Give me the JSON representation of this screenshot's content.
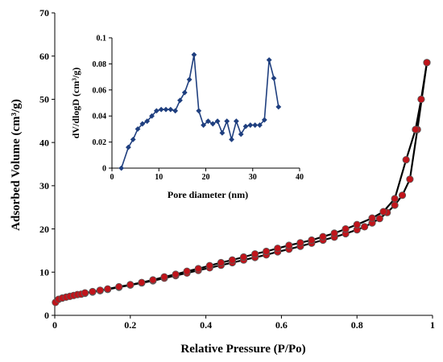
{
  "chart_data": [
    {
      "type": "line",
      "xlabel": "Relative Pressure (P/Po)",
      "ylabel": "Adsorbed Volume (cm³/g)",
      "xlim": [
        0,
        1
      ],
      "ylim": [
        0,
        70
      ],
      "xticks": [
        0,
        0.2,
        0.4,
        0.6,
        0.8,
        1
      ],
      "xtick_labels": [
        "0",
        "0.2",
        "0.4",
        "0.6",
        "0.8",
        "1"
      ],
      "yticks": [
        0,
        10,
        20,
        30,
        40,
        50,
        60,
        70
      ],
      "ytick_labels": [
        "0",
        "10",
        "20",
        "30",
        "40",
        "50",
        "60",
        "70"
      ],
      "grid": false,
      "marker_color": "#c0141b",
      "marker_edge_color": "#5a5a5a",
      "line_color": "#000000",
      "series": [
        {
          "key": "adsorption",
          "x": [
            0.002,
            0.01,
            0.02,
            0.03,
            0.04,
            0.05,
            0.06,
            0.07,
            0.08,
            0.1,
            0.12,
            0.14,
            0.17,
            0.2,
            0.23,
            0.26,
            0.29,
            0.32,
            0.35,
            0.38,
            0.41,
            0.44,
            0.47,
            0.5,
            0.53,
            0.56,
            0.59,
            0.62,
            0.65,
            0.68,
            0.71,
            0.74,
            0.77,
            0.8,
            0.82,
            0.84,
            0.86,
            0.88,
            0.9,
            0.92,
            0.94,
            0.96,
            0.985
          ],
          "y": [
            3.0,
            3.7,
            4.0,
            4.2,
            4.4,
            4.6,
            4.8,
            4.9,
            5.1,
            5.4,
            5.7,
            6.0,
            6.5,
            7.0,
            7.5,
            8.0,
            8.6,
            9.2,
            9.8,
            10.4,
            11.0,
            11.6,
            12.2,
            12.8,
            13.4,
            14.0,
            14.7,
            15.3,
            16.0,
            16.7,
            17.4,
            18.1,
            18.9,
            19.8,
            20.5,
            21.4,
            22.4,
            23.8,
            25.5,
            27.8,
            31.5,
            43.0,
            58.5
          ]
        },
        {
          "key": "desorption",
          "x": [
            0.985,
            0.97,
            0.955,
            0.93,
            0.9,
            0.87,
            0.84,
            0.8,
            0.77,
            0.74,
            0.71,
            0.68,
            0.65,
            0.62,
            0.59,
            0.56,
            0.53,
            0.5,
            0.47,
            0.44,
            0.41,
            0.38,
            0.35,
            0.32,
            0.29,
            0.26,
            0.23,
            0.2,
            0.17,
            0.14,
            0.12,
            0.1,
            0.08
          ],
          "y": [
            58.5,
            50.0,
            43.0,
            36.0,
            27.0,
            24.0,
            22.5,
            21.0,
            20.0,
            19.0,
            18.2,
            17.4,
            16.8,
            16.2,
            15.5,
            14.8,
            14.2,
            13.5,
            12.8,
            12.2,
            11.5,
            10.8,
            10.2,
            9.5,
            8.9,
            8.2,
            7.6,
            7.1,
            6.6,
            6.1,
            5.8,
            5.5,
            5.2
          ]
        }
      ]
    },
    {
      "type": "line",
      "xlabel": "Pore diameter (nm)",
      "ylabel": "dV/dlogD (cm³/g)",
      "xlim": [
        0,
        40
      ],
      "ylim": [
        0,
        0.1
      ],
      "xticks": [
        0,
        10,
        20,
        30,
        40
      ],
      "xtick_labels": [
        "0",
        "10",
        "20",
        "30",
        "40"
      ],
      "yticks": [
        0,
        0.02,
        0.04,
        0.06,
        0.08,
        0.1
      ],
      "ytick_labels": [
        "0",
        "0.02",
        "0.04",
        "0.06",
        "0.08",
        "0.1"
      ],
      "grid": false,
      "line_color": "#1f3f7f",
      "marker_color": "#1f3f7f",
      "series": [
        {
          "key": "pore-size-distribution",
          "x": [
            2,
            3.5,
            4.5,
            5.5,
            6.5,
            7.5,
            8.5,
            9.5,
            10.5,
            11.5,
            12.5,
            13.5,
            14.5,
            15.5,
            16.5,
            17.5,
            18.5,
            19.5,
            20.5,
            21.5,
            22.5,
            23.5,
            24.5,
            25.5,
            26.5,
            27.5,
            28.5,
            29.5,
            30.5,
            31.5,
            32.5,
            33.5,
            34.5,
            35.5
          ],
          "y": [
            0.0,
            0.016,
            0.022,
            0.03,
            0.034,
            0.036,
            0.04,
            0.044,
            0.045,
            0.045,
            0.045,
            0.044,
            0.052,
            0.058,
            0.068,
            0.087,
            0.044,
            0.033,
            0.036,
            0.034,
            0.036,
            0.027,
            0.036,
            0.022,
            0.036,
            0.026,
            0.032,
            0.033,
            0.033,
            0.033,
            0.037,
            0.083,
            0.069,
            0.047
          ]
        }
      ]
    }
  ]
}
